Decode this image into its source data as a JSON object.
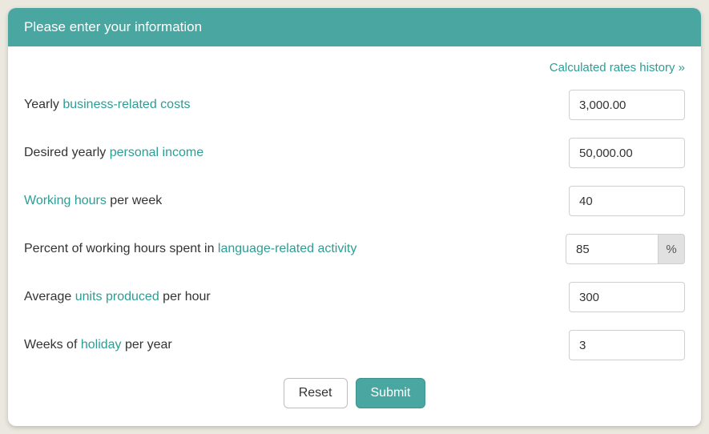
{
  "header": {
    "title": "Please enter your information"
  },
  "links": {
    "history": "Calculated rates history »"
  },
  "fields": {
    "costs": {
      "label_pre": "Yearly ",
      "label_link": "business-related costs",
      "label_post": "",
      "value": "3,000.00"
    },
    "income": {
      "label_pre": "Desired yearly ",
      "label_link": "personal income",
      "label_post": "",
      "value": "50,000.00"
    },
    "hours": {
      "label_pre": "",
      "label_link": "Working hours",
      "label_post": " per week",
      "value": "40"
    },
    "percent": {
      "label_pre": "Percent of working hours spent in ",
      "label_link": "language-related activity",
      "label_post": "",
      "value": "85",
      "addon": "%"
    },
    "units": {
      "label_pre": "Average ",
      "label_link": "units produced",
      "label_post": " per hour",
      "value": "300"
    },
    "holiday": {
      "label_pre": "Weeks of ",
      "label_link": "holiday",
      "label_post": " per year",
      "value": "3"
    }
  },
  "buttons": {
    "reset": "Reset",
    "submit": "Submit"
  }
}
